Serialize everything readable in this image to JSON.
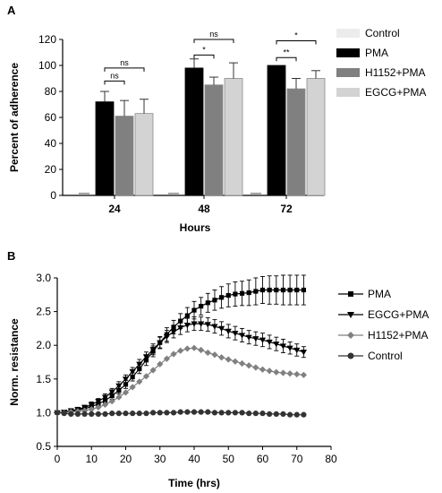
{
  "panels": {
    "a": "A",
    "b": "B"
  },
  "chart_data": [
    {
      "type": "bar",
      "panel": "A",
      "categories": [
        "24",
        "48",
        "72"
      ],
      "xlabel": "Hours",
      "ylabel": "Percent of adherence",
      "ylim": [
        0,
        120
      ],
      "yticks": [
        0,
        20,
        40,
        60,
        80,
        100,
        120
      ],
      "legend_position": "right",
      "series": [
        {
          "name": "Control",
          "color": "#ececec",
          "values": [
            1.5,
            1.5,
            1.5
          ],
          "errors": [
            0.5,
            0.5,
            1.0
          ]
        },
        {
          "name": "PMA",
          "color": "#000000",
          "values": [
            72,
            98,
            100
          ],
          "errors": [
            8,
            7,
            0
          ]
        },
        {
          "name": "H1152+PMA",
          "color": "#808080",
          "values": [
            61,
            85,
            82
          ],
          "errors": [
            12,
            6,
            8
          ]
        },
        {
          "name": "EGCG+PMA",
          "color": "#d3d3d3",
          "values": [
            63,
            90,
            90
          ],
          "errors": [
            11,
            12,
            6
          ]
        }
      ],
      "significance": [
        {
          "category": "24",
          "from": "PMA",
          "to": "H1152+PMA",
          "label": "ns",
          "level": 88
        },
        {
          "category": "24",
          "from": "PMA",
          "to": "EGCG+PMA",
          "label": "ns",
          "level": 98
        },
        {
          "category": "48",
          "from": "PMA",
          "to": "H1152+PMA",
          "label": "*",
          "level": 108
        },
        {
          "category": "48",
          "from": "PMA",
          "to": "EGCG+PMA",
          "label": "ns",
          "level": 120
        },
        {
          "category": "72",
          "from": "PMA",
          "to": "H1152+PMA",
          "label": "**",
          "level": 106
        },
        {
          "category": "72",
          "from": "PMA",
          "to": "EGCG+PMA",
          "label": "*",
          "level": 119
        }
      ]
    },
    {
      "type": "line",
      "panel": "B",
      "xlabel": "Time (hrs)",
      "ylabel": "Norm. resistance",
      "xlim": [
        0,
        80
      ],
      "ylim": [
        0.5,
        3.0
      ],
      "xticks": [
        0,
        10,
        20,
        30,
        40,
        50,
        60,
        70,
        80
      ],
      "yticks": [
        0.5,
        1.0,
        1.5,
        2.0,
        2.5,
        3.0
      ],
      "legend_position": "right",
      "series": [
        {
          "name": "PMA",
          "marker": "square",
          "color": "#000000",
          "x": [
            0,
            2,
            4,
            6,
            8,
            10,
            12,
            14,
            16,
            18,
            20,
            22,
            24,
            26,
            28,
            30,
            32,
            34,
            36,
            38,
            40,
            42,
            44,
            46,
            48,
            50,
            52,
            54,
            56,
            58,
            60,
            62,
            64,
            66,
            68,
            70,
            72
          ],
          "y": [
            1.0,
            1.01,
            1.02,
            1.04,
            1.06,
            1.09,
            1.13,
            1.18,
            1.25,
            1.33,
            1.42,
            1.53,
            1.65,
            1.78,
            1.91,
            2.04,
            2.16,
            2.27,
            2.36,
            2.44,
            2.52,
            2.58,
            2.63,
            2.67,
            2.71,
            2.74,
            2.76,
            2.77,
            2.78,
            2.8,
            2.82,
            2.82,
            2.82,
            2.82,
            2.82,
            2.82,
            2.82
          ],
          "err": [
            0.02,
            0.02,
            0.02,
            0.03,
            0.03,
            0.03,
            0.04,
            0.04,
            0.05,
            0.05,
            0.06,
            0.06,
            0.07,
            0.08,
            0.08,
            0.09,
            0.1,
            0.1,
            0.11,
            0.12,
            0.13,
            0.13,
            0.14,
            0.15,
            0.16,
            0.17,
            0.18,
            0.18,
            0.19,
            0.2,
            0.2,
            0.21,
            0.21,
            0.22,
            0.22,
            0.22,
            0.22
          ]
        },
        {
          "name": "EGCG+PMA",
          "marker": "triangle-down",
          "color": "#000000",
          "x": [
            0,
            2,
            4,
            6,
            8,
            10,
            12,
            14,
            16,
            18,
            20,
            22,
            24,
            26,
            28,
            30,
            32,
            34,
            36,
            38,
            40,
            42,
            44,
            46,
            48,
            50,
            52,
            54,
            56,
            58,
            60,
            62,
            64,
            66,
            68,
            70,
            72
          ],
          "y": [
            1.0,
            1.01,
            1.03,
            1.05,
            1.08,
            1.12,
            1.17,
            1.23,
            1.31,
            1.4,
            1.5,
            1.61,
            1.72,
            1.83,
            1.94,
            2.04,
            2.13,
            2.2,
            2.26,
            2.3,
            2.32,
            2.32,
            2.31,
            2.28,
            2.25,
            2.21,
            2.18,
            2.15,
            2.12,
            2.1,
            2.08,
            2.05,
            2.02,
            1.99,
            1.96,
            1.93,
            1.9
          ],
          "err": [
            0.02,
            0.02,
            0.03,
            0.03,
            0.03,
            0.04,
            0.04,
            0.05,
            0.05,
            0.06,
            0.06,
            0.06,
            0.07,
            0.07,
            0.08,
            0.08,
            0.09,
            0.09,
            0.1,
            0.1,
            0.1,
            0.1,
            0.1,
            0.1,
            0.1,
            0.1,
            0.1,
            0.1,
            0.1,
            0.1,
            0.1,
            0.1,
            0.1,
            0.1,
            0.09,
            0.09,
            0.08
          ]
        },
        {
          "name": "H1152+PMA",
          "marker": "diamond",
          "color": "#808080",
          "x": [
            0,
            2,
            4,
            6,
            8,
            10,
            12,
            14,
            16,
            18,
            20,
            22,
            24,
            26,
            28,
            30,
            32,
            34,
            36,
            38,
            40,
            42,
            44,
            46,
            48,
            50,
            52,
            54,
            56,
            58,
            60,
            62,
            64,
            66,
            68,
            70,
            72
          ],
          "y": [
            1.0,
            1.0,
            1.01,
            1.02,
            1.03,
            1.05,
            1.08,
            1.12,
            1.17,
            1.23,
            1.3,
            1.38,
            1.46,
            1.54,
            1.63,
            1.72,
            1.8,
            1.87,
            1.92,
            1.95,
            1.96,
            1.93,
            1.89,
            1.86,
            1.82,
            1.79,
            1.76,
            1.73,
            1.7,
            1.67,
            1.64,
            1.62,
            1.6,
            1.59,
            1.58,
            1.57,
            1.56
          ]
        },
        {
          "name": "Control",
          "marker": "circle",
          "color": "#333333",
          "x": [
            0,
            2,
            4,
            6,
            8,
            10,
            12,
            14,
            16,
            18,
            20,
            22,
            24,
            26,
            28,
            30,
            32,
            34,
            36,
            38,
            40,
            42,
            44,
            46,
            48,
            50,
            52,
            54,
            56,
            58,
            60,
            62,
            64,
            66,
            68,
            70,
            72
          ],
          "y": [
            1.0,
            0.99,
            0.98,
            0.98,
            0.98,
            0.98,
            0.98,
            0.98,
            0.99,
            0.99,
            0.99,
            0.99,
            0.99,
            0.99,
            1.0,
            1.0,
            1.0,
            1.0,
            1.01,
            1.01,
            1.01,
            1.01,
            1.01,
            1.0,
            1.0,
            1.0,
            1.0,
            1.0,
            0.99,
            0.99,
            0.99,
            0.98,
            0.98,
            0.98,
            0.97,
            0.97,
            0.97
          ]
        }
      ]
    }
  ]
}
